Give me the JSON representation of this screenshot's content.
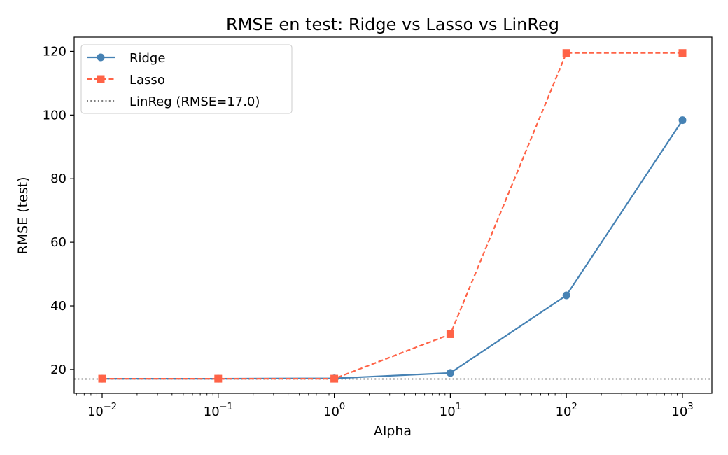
{
  "chart_data": {
    "type": "line",
    "title": "RMSE en test: Ridge vs Lasso vs LinReg",
    "xlabel": "Alpha",
    "ylabel": "RMSE (test)",
    "xscale": "log",
    "x": [
      0.01,
      0.1,
      1,
      10,
      100,
      1000
    ],
    "x_ticks": [
      {
        "base": "10",
        "exp": "−2"
      },
      {
        "base": "10",
        "exp": "−1"
      },
      {
        "base": "10",
        "exp": "0"
      },
      {
        "base": "10",
        "exp": "1"
      },
      {
        "base": "10",
        "exp": "2"
      },
      {
        "base": "10",
        "exp": "3"
      }
    ],
    "y_ticks": [
      "20",
      "40",
      "60",
      "80",
      "100",
      "120"
    ],
    "ylim": [
      12.5,
      124.5
    ],
    "series": [
      {
        "name": "Ridge",
        "values": [
          17.1,
          17.1,
          17.2,
          18.9,
          43.3,
          98.4
        ],
        "color": "#4682b4",
        "style": "solid",
        "marker": "circle"
      },
      {
        "name": "Lasso",
        "values": [
          17.1,
          17.1,
          17.1,
          31.1,
          119.5,
          119.5
        ],
        "color": "#ff6347",
        "style": "dashed",
        "marker": "square"
      }
    ],
    "reference_line": {
      "name": "LinReg (RMSE=17.0)",
      "value": 17.0,
      "color": "#808080",
      "style": "dotted"
    },
    "legend_position": "top-left",
    "grid": false
  }
}
